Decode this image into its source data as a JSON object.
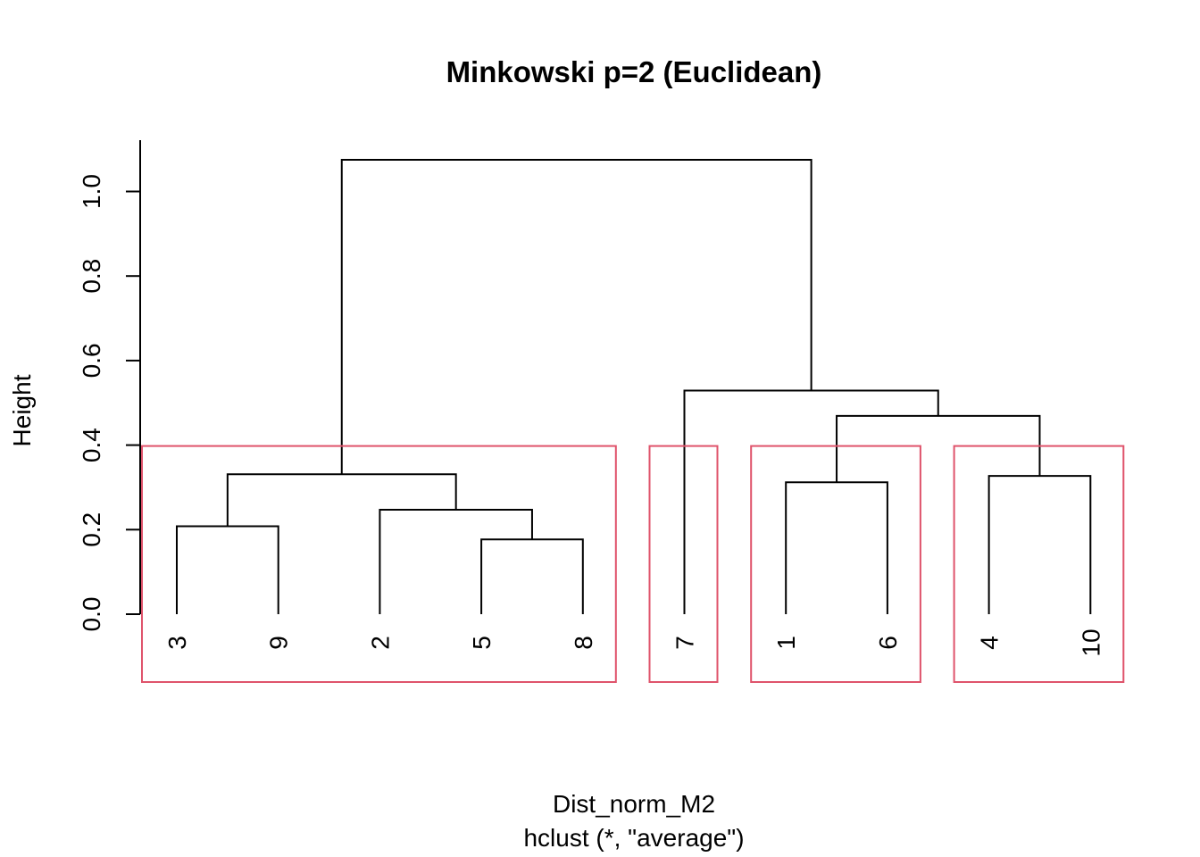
{
  "chart_data": {
    "type": "dendrogram",
    "title": "Minkowski p=2 (Euclidean)",
    "ylabel": "Height",
    "xlabel": "Dist_norm_M2",
    "sub": "hclust (*, \"average\")",
    "ylim": [
      0,
      1.1
    ],
    "y_ticks": [
      0.0,
      0.2,
      0.4,
      0.6,
      0.8,
      1.0
    ],
    "y_tick_labels": [
      "0.0",
      "0.2",
      "0.4",
      "0.6",
      "0.8",
      "1.0"
    ],
    "leaf_order": [
      "3",
      "9",
      "2",
      "5",
      "8",
      "7",
      "1",
      "6",
      "4",
      "10"
    ],
    "merges": [
      {
        "left": "5",
        "right": "8",
        "height": 0.177
      },
      {
        "left": "3",
        "right": "9",
        "height": 0.208
      },
      {
        "left": "2",
        "right": "(5,8)",
        "height": 0.247
      },
      {
        "left": "1",
        "right": "6",
        "height": 0.312
      },
      {
        "left": "4",
        "right": "10",
        "height": 0.327
      },
      {
        "left": "(3,9)",
        "right": "(2,(5,8))",
        "height": 0.331
      },
      {
        "left": "(1,6)",
        "right": "(4,10)",
        "height": 0.469
      },
      {
        "left": "7",
        "right": "((1,6),(4,10))",
        "height": 0.529
      },
      {
        "left": "((3,9),(2,(5,8)))",
        "right": "(7,((1,6),(4,10)))",
        "height": 1.075
      }
    ],
    "rect_hclust": {
      "k": 4,
      "color": "#DF536B",
      "clusters": [
        [
          "3",
          "9",
          "2",
          "5",
          "8"
        ],
        [
          "7"
        ],
        [
          "1",
          "6"
        ],
        [
          "4",
          "10"
        ]
      ]
    }
  }
}
